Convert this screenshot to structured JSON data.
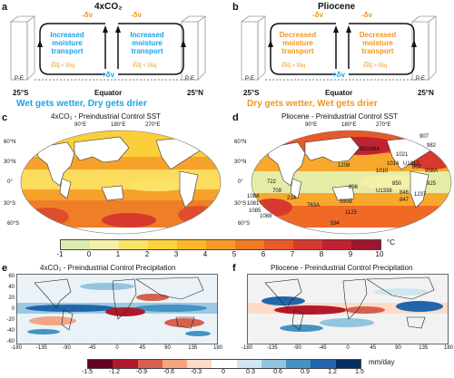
{
  "panel_a": {
    "letter": "a",
    "title": "4xCO₂",
    "left_text": "Increased moisture transport",
    "right_text": "Increased moisture transport",
    "left_bottom": "δ̅v̅q̅ < v̅δq",
    "right_bottom": "δ̅v̅q̅ < v̅δq",
    "top_left": "-δv",
    "top_right": "-δv",
    "bottom_center": "+δv",
    "pe_left": "P-E",
    "pe_right": "P-E",
    "lat_left": "25°S",
    "lat_center": "Equator",
    "lat_right": "25°N",
    "caption": "Wet gets wetter, Dry gets drier"
  },
  "panel_b": {
    "letter": "b",
    "title": "Pliocene",
    "left_text": "Decreased moisture transport",
    "right_text": "Decreased moisture transport",
    "left_bottom": "δ̅v̅q̅ > v̅δq",
    "right_bottom": "δ̅v̅q̅ > v̅δq",
    "top_left": "-δv",
    "top_right": "-δv",
    "bottom_center": "+δv",
    "pe_left": "P-E",
    "pe_right": "P-E",
    "lat_left": "25°S",
    "lat_center": "Equator",
    "lat_right": "25°N",
    "caption": "Dry gets wetter, Wet gets drier"
  },
  "panel_c": {
    "letter": "c",
    "title": "4xCO₂ - Preindustrial Control SST",
    "lon_labels": [
      "90°E",
      "180°E",
      "270°E"
    ],
    "lat_labels": [
      "60°N",
      "30°N",
      "0°",
      "30°S",
      "60°S"
    ]
  },
  "panel_d": {
    "letter": "d",
    "title": "Pliocene - Preindustrial Control SST",
    "lon_labels": [
      "90°E",
      "180°E",
      "270°E"
    ],
    "lat_labels": [
      "60°N",
      "30°N",
      "0°",
      "30°S",
      "60°S"
    ],
    "sites": [
      "907",
      "982",
      "883/884",
      "1021",
      "1208",
      "1014",
      "U1313",
      "1010",
      "607",
      "958A",
      "722",
      "U1338",
      "806",
      "925",
      "1084",
      "214",
      "709",
      "846",
      "1237",
      "1081",
      "847",
      "850",
      "590B",
      "763A",
      "1085",
      "1088",
      "1125",
      "594"
    ]
  },
  "sst_colorbar": {
    "ticks": [
      "-1",
      "0",
      "1",
      "2",
      "3",
      "4",
      "5",
      "6",
      "7",
      "8",
      "9",
      "10"
    ],
    "unit": "°C",
    "colors": [
      "#ddeab0",
      "#f5f0a8",
      "#fbe36a",
      "#fcd23c",
      "#fbb92a",
      "#f89a26",
      "#f27a26",
      "#e85a2a",
      "#d7392f",
      "#c02231",
      "#9e1530"
    ]
  },
  "panel_e": {
    "letter": "e",
    "title": "4xCO₂ - Preindustrial Control Precipitation",
    "x_ticks": [
      "-180",
      "-135",
      "-90",
      "-45",
      "0",
      "45",
      "90",
      "135",
      "180"
    ],
    "y_ticks": [
      "60",
      "40",
      "20",
      "0",
      "-20",
      "-40",
      "-60"
    ]
  },
  "panel_f": {
    "letter": "f",
    "title": "Pliocene - Preindustrial Control Precipitation",
    "x_ticks": [
      "-180",
      "-135",
      "-90",
      "-45",
      "0",
      "45",
      "90",
      "135",
      "180"
    ]
  },
  "precip_colorbar": {
    "ticks": [
      "-1.5",
      "-1.2",
      "-0.9",
      "-0.6",
      "-0.3",
      "0",
      "0.3",
      "0.6",
      "0.9",
      "1.2",
      "1.5"
    ],
    "unit": "mm/day",
    "colors": [
      "#67001f",
      "#b2182b",
      "#d6604d",
      "#f4a582",
      "#fddbc7",
      "#ffffff",
      "#d1e5f0",
      "#92c5de",
      "#4393c3",
      "#2166ac",
      "#053061"
    ]
  }
}
